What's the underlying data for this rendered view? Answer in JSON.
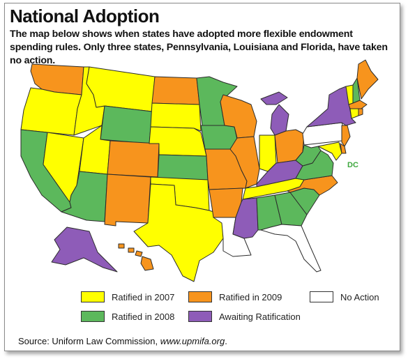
{
  "title": "National Adoption",
  "subtitle": "The map below shows when states have adopted more flexible endowment spending rules. Only three states, Pennsylvania, Louisiana and Florida, have taken no action.",
  "dc_label": "DC",
  "colors": {
    "ratified_2007": "#ffff00",
    "ratified_2008": "#5cb85c",
    "ratified_2009": "#f7941d",
    "awaiting": "#8e5cb8",
    "no_action": "#ffffff"
  },
  "legend": [
    {
      "key": "ratified_2007",
      "label": "Ratified in 2007"
    },
    {
      "key": "ratified_2009",
      "label": "Ratified in 2009"
    },
    {
      "key": "no_action",
      "label": "No Action"
    },
    {
      "key": "ratified_2008",
      "label": "Ratified in 2008"
    },
    {
      "key": "awaiting",
      "label": "Awaiting Ratification"
    }
  ],
  "source": {
    "prefix": "Source: Uniform Law Commission, ",
    "site": "www.upmifa.org",
    "suffix": "."
  },
  "states": {
    "WA": "ratified_2009",
    "OR": "ratified_2007",
    "CA": "ratified_2008",
    "ID": "ratified_2007",
    "NV": "ratified_2007",
    "MT": "ratified_2007",
    "WY": "ratified_2008",
    "UT": "ratified_2007",
    "AZ": "ratified_2008",
    "CO": "ratified_2009",
    "NM": "ratified_2009",
    "ND": "ratified_2009",
    "SD": "ratified_2007",
    "NE": "ratified_2007",
    "KS": "ratified_2008",
    "OK": "ratified_2007",
    "TX": "ratified_2007",
    "MN": "ratified_2008",
    "IA": "ratified_2008",
    "MO": "ratified_2009",
    "AR": "ratified_2009",
    "LA": "no_action",
    "WI": "ratified_2009",
    "IL": "ratified_2009",
    "MI": "awaiting",
    "IN": "ratified_2007",
    "OH": "ratified_2009",
    "KY": "awaiting",
    "TN": "ratified_2007",
    "MS": "awaiting",
    "AL": "ratified_2008",
    "GA": "ratified_2008",
    "FL": "no_action",
    "SC": "ratified_2008",
    "NC": "ratified_2009",
    "VA": "ratified_2008",
    "WV": "ratified_2008",
    "PA": "no_action",
    "NY": "awaiting",
    "VT": "ratified_2007",
    "NH": "ratified_2008",
    "ME": "ratified_2009",
    "MA": "ratified_2009",
    "CT": "ratified_2007",
    "RI": "ratified_2009",
    "NJ": "ratified_2009",
    "DE": "ratified_2009",
    "MD": "ratified_2007",
    "AK": "awaiting",
    "HI": "ratified_2009"
  }
}
